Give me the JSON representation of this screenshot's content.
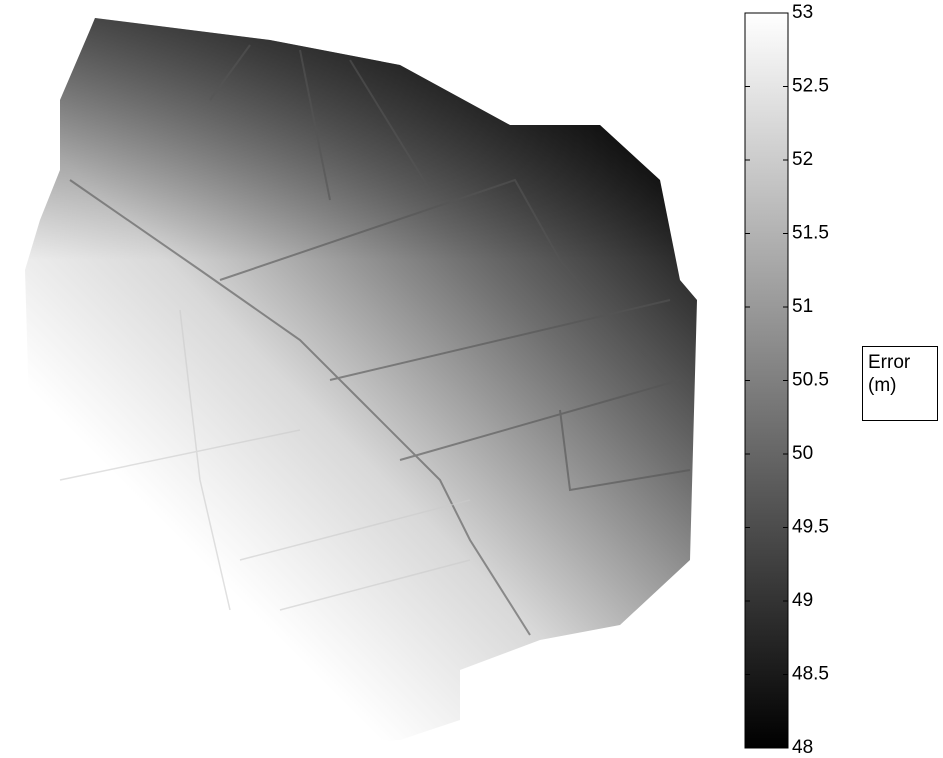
{
  "chart_data": {
    "type": "colorbar",
    "label": "Error (m)",
    "colormap": "gray",
    "zlim": [
      48,
      53
    ],
    "zticks": [
      48,
      48.5,
      49,
      49.5,
      50,
      50.5,
      51,
      51.5,
      52,
      52.5,
      53
    ]
  }
}
